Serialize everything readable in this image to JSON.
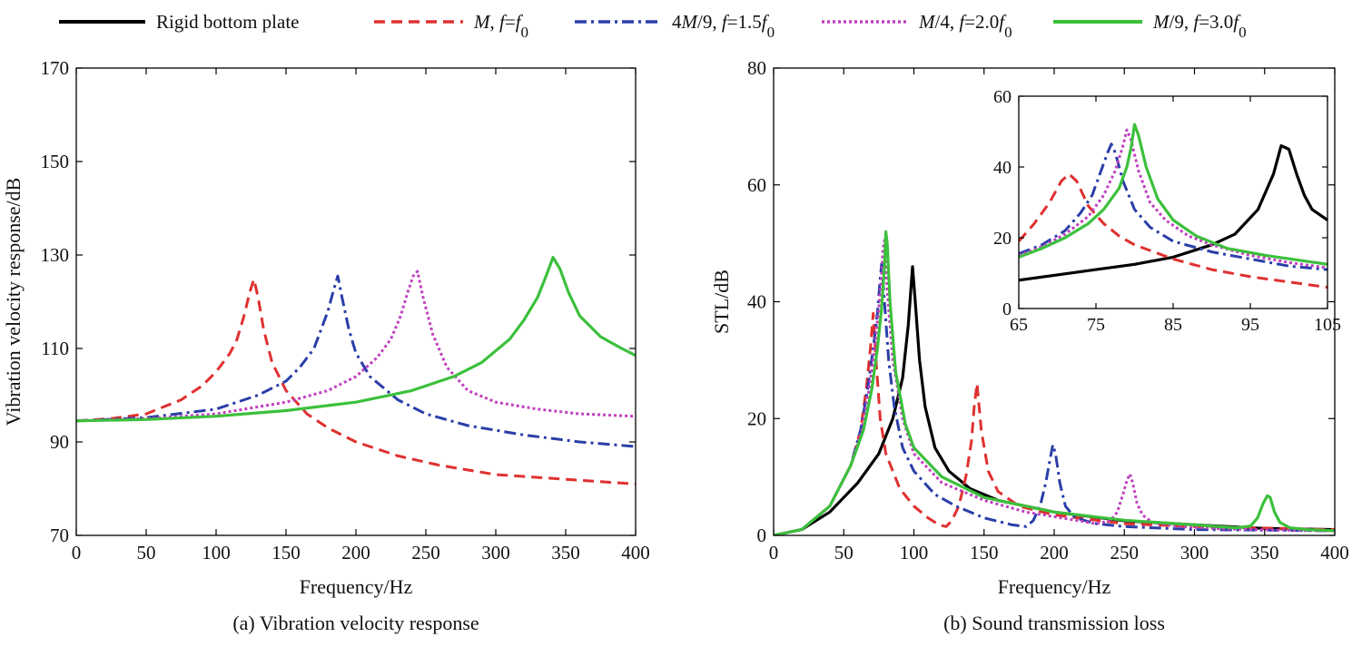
{
  "legend": {
    "items": [
      {
        "key": "rigid",
        "label": "Rigid bottom plate",
        "color": "#000000",
        "dash": "solid"
      },
      {
        "key": "m1",
        "label": "M, f=f0",
        "parts": [
          {
            "t": "M",
            "i": true
          },
          {
            "t": ", "
          },
          {
            "t": "f",
            "i": true
          },
          {
            "t": "="
          },
          {
            "t": "f",
            "i": true
          },
          {
            "t": "0",
            "sub": true
          }
        ],
        "color": "#e03030",
        "dash": "dash"
      },
      {
        "key": "m2",
        "label": "4M/9, f=1.5f0",
        "parts": [
          {
            "t": "4"
          },
          {
            "t": "M",
            "i": true
          },
          {
            "t": "/9, "
          },
          {
            "t": "f",
            "i": true
          },
          {
            "t": "=1.5"
          },
          {
            "t": "f",
            "i": true
          },
          {
            "t": "0",
            "sub": true
          }
        ],
        "color": "#2a3ea8",
        "dash": "dashdot"
      },
      {
        "key": "m3",
        "label": "M/4, f=2.0f0",
        "parts": [
          {
            "t": "M",
            "i": true
          },
          {
            "t": "/4, "
          },
          {
            "t": "f",
            "i": true
          },
          {
            "t": "=2.0"
          },
          {
            "t": "f",
            "i": true
          },
          {
            "t": "0",
            "sub": true
          }
        ],
        "color": "#c040c0",
        "dash": "dot"
      },
      {
        "key": "m4",
        "label": "M/9, f=3.0f0",
        "parts": [
          {
            "t": "M",
            "i": true
          },
          {
            "t": "/9, "
          },
          {
            "t": "f",
            "i": true
          },
          {
            "t": "=3.0"
          },
          {
            "t": "f",
            "i": true
          },
          {
            "t": "0",
            "sub": true
          }
        ],
        "color": "#3cc03c",
        "dash": "solid"
      }
    ]
  },
  "chart_data": [
    {
      "id": "a",
      "type": "line",
      "caption": "(a) Vibration velocity response",
      "xlabel": "Frequency/Hz",
      "ylabel": "Vibration velocity response/dB",
      "xlim": [
        0,
        400
      ],
      "ylim": [
        70,
        170
      ],
      "xticks": [
        0,
        50,
        100,
        150,
        200,
        250,
        300,
        350,
        400
      ],
      "yticks": [
        70,
        90,
        110,
        130,
        150,
        170
      ],
      "series": [
        {
          "key": "m1",
          "x": [
            0,
            25,
            50,
            75,
            90,
            100,
            110,
            115,
            120,
            124,
            127,
            130,
            134,
            140,
            150,
            165,
            180,
            200,
            230,
            260,
            300,
            350,
            400
          ],
          "y": [
            94.5,
            95,
            96,
            99,
            102,
            105,
            109,
            112,
            117,
            122,
            124.8,
            121,
            114,
            107,
            101,
            96,
            93,
            90,
            87,
            85,
            83,
            82,
            81
          ]
        },
        {
          "key": "m2",
          "x": [
            0,
            50,
            100,
            130,
            150,
            160,
            170,
            175,
            180,
            184,
            187,
            190,
            195,
            200,
            210,
            230,
            250,
            280,
            320,
            360,
            400
          ],
          "y": [
            94.5,
            95.2,
            97,
            100,
            103,
            106,
            110,
            114,
            118,
            122.5,
            125.5,
            121,
            114,
            109,
            104,
            99,
            96,
            93.5,
            91.5,
            90,
            89
          ]
        },
        {
          "key": "m3",
          "x": [
            0,
            50,
            100,
            150,
            180,
            200,
            215,
            225,
            232,
            237,
            241,
            244,
            248,
            255,
            265,
            280,
            300,
            330,
            360,
            400
          ],
          "y": [
            94.5,
            95,
            96,
            98.5,
            101,
            104,
            108,
            112,
            117,
            122,
            125.5,
            126.5,
            121,
            113,
            106,
            101,
            98.5,
            97,
            96,
            95.5
          ]
        },
        {
          "key": "m4",
          "x": [
            0,
            50,
            100,
            150,
            200,
            240,
            270,
            290,
            310,
            320,
            330,
            336,
            341,
            346,
            352,
            360,
            375,
            390,
            400
          ],
          "y": [
            94.5,
            94.8,
            95.5,
            96.7,
            98.5,
            101,
            104,
            107,
            112,
            116,
            121,
            125.5,
            129.5,
            127,
            122,
            117,
            112.5,
            110,
            108.5
          ]
        }
      ]
    },
    {
      "id": "b",
      "type": "line",
      "caption": "(b) Sound transmission loss",
      "xlabel": "Frequency/Hz",
      "ylabel": "STL/dB",
      "xlim": [
        0,
        400
      ],
      "ylim": [
        0,
        80
      ],
      "xticks": [
        0,
        50,
        100,
        150,
        200,
        250,
        300,
        350,
        400
      ],
      "yticks": [
        0,
        20,
        40,
        60,
        80
      ],
      "series": [
        {
          "key": "rigid",
          "x": [
            0,
            20,
            40,
            60,
            75,
            85,
            92,
            96,
            99,
            101,
            104,
            108,
            115,
            125,
            140,
            160,
            200,
            250,
            300,
            350,
            400
          ],
          "y": [
            0,
            1,
            4,
            9,
            14,
            20,
            27,
            36,
            46,
            40,
            30,
            22,
            15,
            11,
            8,
            6,
            4,
            2.5,
            1.8,
            1.2,
            1
          ]
        },
        {
          "key": "m1",
          "x": [
            0,
            20,
            40,
            55,
            62,
            66,
            69,
            71,
            73,
            76,
            80,
            90,
            100,
            110,
            118,
            123,
            127,
            132,
            137,
            141,
            143,
            145,
            148,
            153,
            160,
            175,
            200,
            250,
            300,
            400
          ],
          "y": [
            0,
            1,
            5,
            12,
            18,
            25,
            32,
            38,
            30,
            20,
            14,
            8,
            5,
            3,
            1.8,
            1.5,
            2.5,
            5,
            10,
            16,
            22,
            26,
            18,
            11,
            7.5,
            5,
            3.5,
            2,
            1.5,
            1
          ]
        },
        {
          "key": "m2",
          "x": [
            0,
            20,
            40,
            55,
            62,
            67,
            71,
            74,
            76,
            77,
            79,
            82,
            86,
            92,
            100,
            115,
            130,
            150,
            170,
            180,
            185,
            190,
            194,
            197,
            199,
            201,
            204,
            208,
            215,
            230,
            250,
            300,
            400
          ],
          "y": [
            0,
            1,
            5,
            12,
            18,
            25,
            32,
            38,
            44,
            46.5,
            40,
            30,
            22,
            15,
            11,
            7,
            5,
            3,
            1.8,
            1.5,
            2.5,
            5,
            9,
            13,
            15.5,
            14,
            9,
            5,
            3,
            2,
            1.5,
            1,
            0.8
          ]
        },
        {
          "key": "m3",
          "x": [
            0,
            20,
            40,
            55,
            63,
            68,
            72,
            75,
            77,
            78,
            79,
            81,
            85,
            92,
            100,
            120,
            150,
            180,
            210,
            230,
            240,
            245,
            249,
            252,
            254,
            256,
            259,
            263,
            270,
            290,
            320,
            360,
            400
          ],
          "y": [
            0,
            1,
            5,
            12,
            18,
            25,
            32,
            39,
            45,
            49,
            50.5,
            42,
            30,
            20,
            14,
            9,
            6,
            4,
            2.8,
            2,
            2.5,
            4,
            7,
            9.5,
            10.5,
            9,
            5.5,
            3.5,
            2.2,
            1.5,
            1.1,
            0.9,
            0.8
          ]
        },
        {
          "key": "m4",
          "x": [
            0,
            20,
            40,
            55,
            64,
            70,
            74,
            77,
            79,
            80,
            81,
            83,
            87,
            94,
            100,
            120,
            150,
            200,
            250,
            300,
            330,
            340,
            345,
            349,
            352,
            354,
            357,
            361,
            368,
            380,
            400
          ],
          "y": [
            0,
            1,
            5,
            12,
            18,
            25,
            32,
            39,
            46,
            52,
            50,
            40,
            28,
            19,
            15,
            10,
            6.5,
            4,
            2.6,
            1.8,
            1.3,
            1.6,
            3,
            5.5,
            6.8,
            6.5,
            4,
            2.2,
            1.3,
            1,
            0.8
          ]
        }
      ]
    },
    {
      "id": "b-inset",
      "type": "line",
      "xlim": [
        65,
        105
      ],
      "ylim": [
        0,
        60
      ],
      "xticks": [
        65,
        75,
        85,
        95,
        105
      ],
      "yticks": [
        0,
        20,
        40,
        60
      ],
      "series": [
        {
          "key": "rigid",
          "x": [
            65,
            70,
            75,
            80,
            85,
            90,
            93,
            96,
            98,
            99,
            100,
            101,
            102,
            103,
            105
          ],
          "y": [
            8,
            9.5,
            11,
            12.5,
            14.5,
            18,
            21,
            28,
            38,
            46,
            45,
            38,
            32,
            28,
            25
          ]
        },
        {
          "key": "m1",
          "x": [
            65,
            67,
            69,
            70.5,
            71.5,
            72.5,
            74,
            76,
            78,
            80,
            85,
            90,
            95,
            100,
            105
          ],
          "y": [
            19,
            24,
            30,
            36,
            38,
            36,
            29,
            24,
            20.5,
            18,
            14,
            11,
            9,
            7.5,
            6
          ]
        },
        {
          "key": "m2",
          "x": [
            65,
            68,
            71,
            73,
            74.5,
            75.5,
            76.5,
            77,
            77.5,
            78.5,
            80,
            82,
            85,
            90,
            95,
            100,
            105
          ],
          "y": [
            15.5,
            18,
            22,
            27,
            32,
            38,
            44,
            46.5,
            44,
            36,
            28,
            23,
            19,
            16,
            14,
            12,
            11
          ]
        },
        {
          "key": "m3",
          "x": [
            65,
            68,
            71,
            74,
            76,
            77.5,
            78.5,
            79,
            79.5,
            80.5,
            82,
            84,
            87,
            90,
            95,
            100,
            105
          ],
          "y": [
            15,
            17.5,
            21,
            26,
            32,
            39,
            46,
            50.5,
            48,
            39,
            30,
            25,
            20.5,
            18,
            15,
            13,
            11.5
          ]
        },
        {
          "key": "m4",
          "x": [
            65,
            68,
            71,
            74,
            76,
            78,
            79,
            79.6,
            80,
            80.5,
            81.5,
            83,
            85,
            88,
            92,
            97,
            105
          ],
          "y": [
            14.5,
            17,
            20,
            24,
            28,
            34,
            40,
            46,
            52,
            49,
            40,
            31,
            25,
            20.5,
            17,
            15,
            12.5
          ]
        }
      ]
    }
  ]
}
